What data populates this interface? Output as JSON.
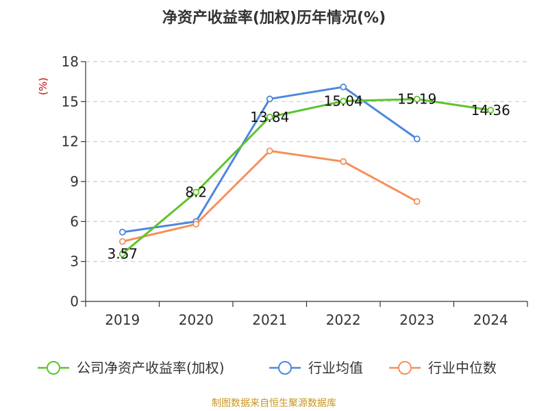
{
  "chart_data": {
    "type": "line",
    "title": "净资产收益率(加权)历年情况(%)",
    "ylabel": "(%)",
    "xlabel": "",
    "categories": [
      "2019",
      "2020",
      "2021",
      "2022",
      "2023",
      "2024"
    ],
    "ylim": [
      0,
      18
    ],
    "yticks": [
      0,
      3,
      6,
      9,
      12,
      15,
      18
    ],
    "grid": true,
    "legend_position": "bottom",
    "series": [
      {
        "name": "公司净资产收益率(加权)",
        "color": "#5cc42a",
        "values": [
          3.57,
          8.2,
          13.84,
          15.04,
          15.19,
          14.36
        ],
        "labels": [
          "3.57",
          "8.2",
          "13.84",
          "15.04",
          "15.19",
          "14.36"
        ],
        "show_labels": true
      },
      {
        "name": "行业均值",
        "color": "#4e86dc",
        "values": [
          5.2,
          6.0,
          15.2,
          16.1,
          12.2,
          null
        ],
        "show_labels": false
      },
      {
        "name": "行业中位数",
        "color": "#f5905a",
        "values": [
          4.5,
          5.8,
          11.3,
          10.5,
          7.5,
          null
        ],
        "show_labels": false
      }
    ]
  },
  "footer": {
    "text": "制图数据来自恒生聚源数据库",
    "color": "#c8951e"
  },
  "colors": {
    "axis": "#333333",
    "grid": "#cccccc",
    "unit": "#cc0000"
  }
}
